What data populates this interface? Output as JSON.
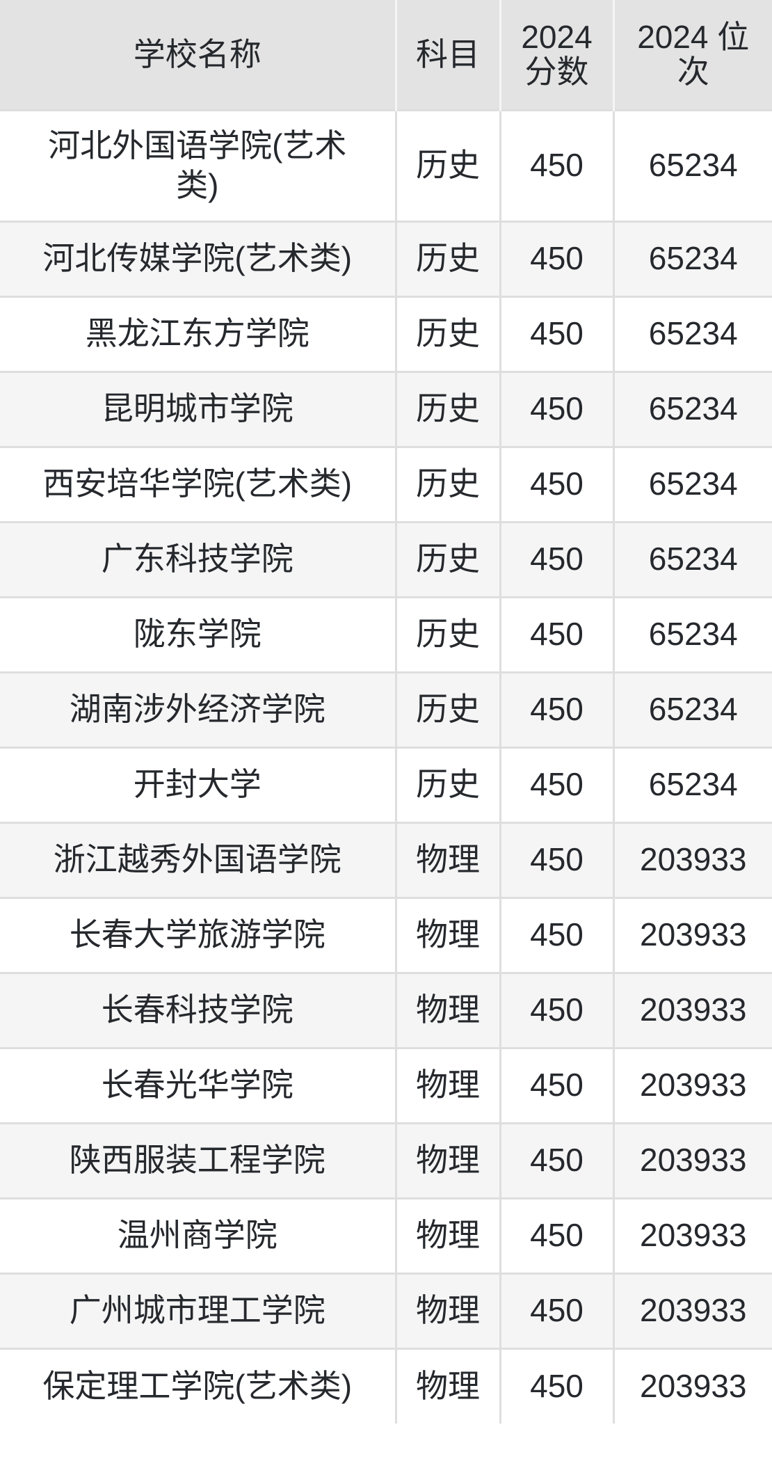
{
  "colors": {
    "header_bg": "#e3e3e3",
    "row_bg": "#ffffff",
    "row_alt_bg": "#f5f5f5",
    "grid_line": "#dedede",
    "header_divider": "#f5f5f5",
    "text": "#25282c",
    "page_bg": "#ffffff"
  },
  "table": {
    "columns": [
      {
        "key": "school",
        "label": "学校名称"
      },
      {
        "key": "subject",
        "label": "科目"
      },
      {
        "key": "score",
        "label": "2024 分数"
      },
      {
        "key": "rank",
        "label": "2024 位次"
      }
    ],
    "rows": [
      {
        "school": "河北外国语学院(艺术类)",
        "subject": "历史",
        "score": "450",
        "rank": "65234"
      },
      {
        "school": "河北传媒学院(艺术类)",
        "subject": "历史",
        "score": "450",
        "rank": "65234"
      },
      {
        "school": "黑龙江东方学院",
        "subject": "历史",
        "score": "450",
        "rank": "65234"
      },
      {
        "school": "昆明城市学院",
        "subject": "历史",
        "score": "450",
        "rank": "65234"
      },
      {
        "school": "西安培华学院(艺术类)",
        "subject": "历史",
        "score": "450",
        "rank": "65234"
      },
      {
        "school": "广东科技学院",
        "subject": "历史",
        "score": "450",
        "rank": "65234"
      },
      {
        "school": "陇东学院",
        "subject": "历史",
        "score": "450",
        "rank": "65234"
      },
      {
        "school": "湖南涉外经济学院",
        "subject": "历史",
        "score": "450",
        "rank": "65234"
      },
      {
        "school": "开封大学",
        "subject": "历史",
        "score": "450",
        "rank": "65234"
      },
      {
        "school": "浙江越秀外国语学院",
        "subject": "物理",
        "score": "450",
        "rank": "203933"
      },
      {
        "school": "长春大学旅游学院",
        "subject": "物理",
        "score": "450",
        "rank": "203933"
      },
      {
        "school": "长春科技学院",
        "subject": "物理",
        "score": "450",
        "rank": "203933"
      },
      {
        "school": "长春光华学院",
        "subject": "物理",
        "score": "450",
        "rank": "203933"
      },
      {
        "school": "陕西服装工程学院",
        "subject": "物理",
        "score": "450",
        "rank": "203933"
      },
      {
        "school": "温州商学院",
        "subject": "物理",
        "score": "450",
        "rank": "203933"
      },
      {
        "school": "广州城市理工学院",
        "subject": "物理",
        "score": "450",
        "rank": "203933"
      },
      {
        "school": "保定理工学院(艺术类)",
        "subject": "物理",
        "score": "450",
        "rank": "203933"
      }
    ]
  }
}
